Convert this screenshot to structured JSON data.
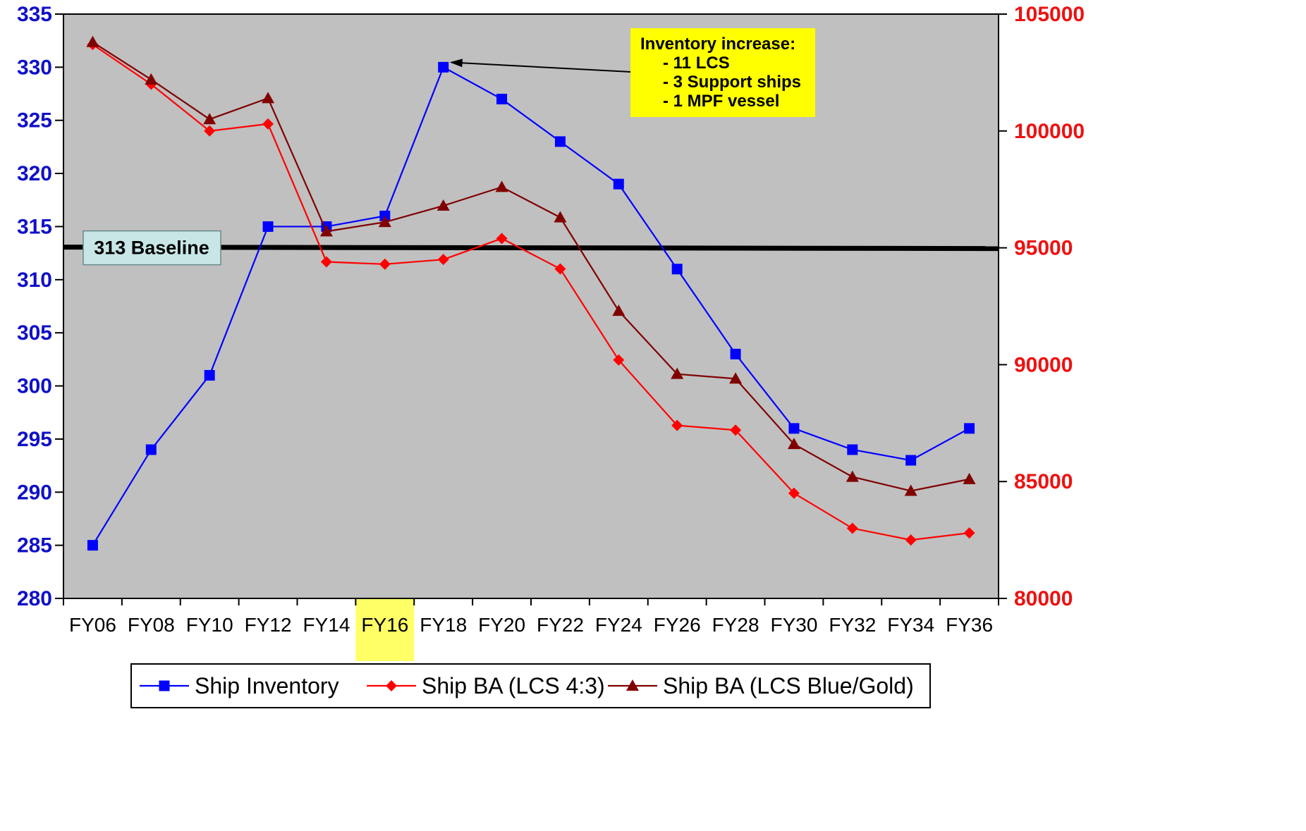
{
  "chart_data": {
    "type": "line",
    "title": "",
    "xlabel": "",
    "ylabel": "",
    "categories": [
      "FY06",
      "FY08",
      "FY10",
      "FY12",
      "FY14",
      "FY16",
      "FY18",
      "FY20",
      "FY22",
      "FY24",
      "FY26",
      "FY28",
      "FY30",
      "FY32",
      "FY34",
      "FY36"
    ],
    "highlighted_category": "FY16",
    "y_left": {
      "min": 280,
      "max": 335,
      "step": 5,
      "ticks": [
        "280",
        "285",
        "290",
        "295",
        "300",
        "305",
        "310",
        "315",
        "320",
        "325",
        "330",
        "335"
      ],
      "color": "#1010c8"
    },
    "y_right": {
      "min": 80000,
      "max": 105000,
      "step": 5000,
      "ticks": [
        "80000",
        "85000",
        "90000",
        "95000",
        "100000",
        "105000"
      ],
      "color": "#ee1111"
    },
    "grid": false,
    "plot_background": "#c0c0c0",
    "highlight_color": "#ffff66",
    "series": [
      {
        "name": "Ship Inventory",
        "axis": "left",
        "color": "#0000ff",
        "marker": "square",
        "values": [
          285,
          294,
          301,
          315,
          315,
          316,
          330,
          327,
          323,
          319,
          311,
          303,
          296,
          294,
          293,
          296
        ]
      },
      {
        "name": "Ship BA (LCS 4:3)",
        "axis": "right",
        "color": "#ff0000",
        "marker": "diamond",
        "values": [
          103700,
          102000,
          100000,
          100300,
          94400,
          94300,
          94500,
          95400,
          94100,
          90200,
          87400,
          87200,
          84500,
          83000,
          82500,
          82800
        ]
      },
      {
        "name": "Ship BA (LCS Blue/Gold)",
        "axis": "right",
        "color": "#800000",
        "marker": "triangle",
        "values": [
          103800,
          102200,
          100500,
          101400,
          95700,
          96100,
          96800,
          97600,
          96300,
          92300,
          89600,
          89400,
          86600,
          85200,
          84600,
          85100
        ]
      }
    ],
    "baseline": {
      "label": "313 Baseline",
      "value": 313,
      "axis": "left"
    },
    "annotation": {
      "lines": [
        "Inventory increase:",
        "- 11 LCS",
        "-   3 Support ships",
        "-   1 MPF vessel"
      ],
      "target_category": "FY18",
      "target_value": 330,
      "background": "#ffff00"
    },
    "legend_position": "bottom"
  }
}
